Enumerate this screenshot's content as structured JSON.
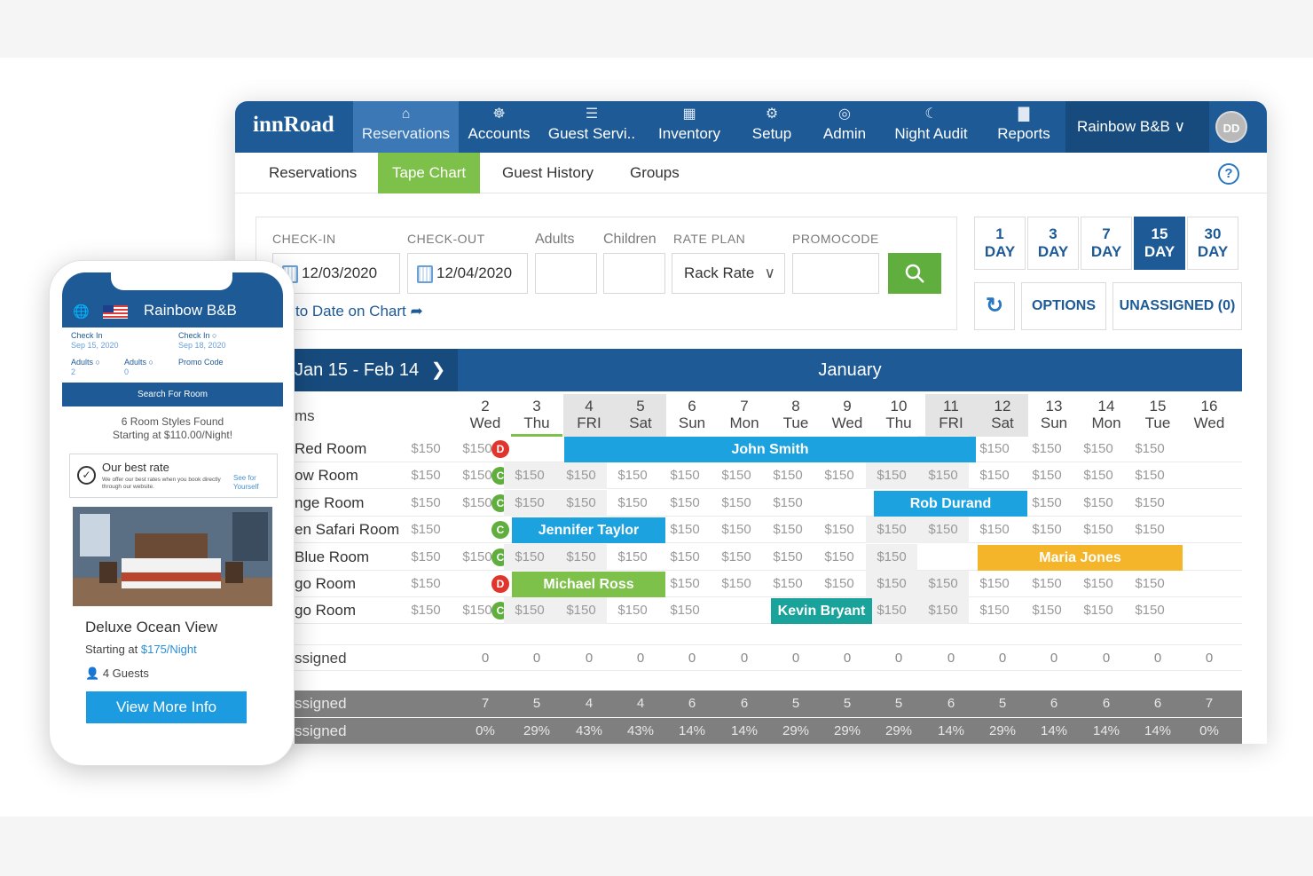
{
  "desktop": {
    "brand": "innRoad",
    "nav": [
      {
        "label": "Reservations",
        "icon": "bell-icon",
        "glyph": "⌂",
        "active": true
      },
      {
        "label": "Accounts",
        "icon": "people-icon",
        "glyph": "☸",
        "active": false
      },
      {
        "label": "Guest Servi..",
        "icon": "clipboard-icon",
        "glyph": "☰",
        "active": false
      },
      {
        "label": "Inventory",
        "icon": "calendar-icon",
        "glyph": "▦",
        "active": false
      },
      {
        "label": "Setup",
        "icon": "gear-icon",
        "glyph": "⚙",
        "active": false
      },
      {
        "label": "Admin",
        "icon": "lock-icon",
        "glyph": "◎",
        "active": false
      },
      {
        "label": "Night Audit",
        "icon": "moon-icon",
        "glyph": "☾",
        "active": false
      },
      {
        "label": "Reports",
        "icon": "bar-chart-icon",
        "glyph": "▇",
        "active": false
      }
    ],
    "property": "Rainbow B&B",
    "avatar": "DD",
    "subtabs": [
      "Reservations",
      "Tape Chart",
      "Guest History",
      "Groups"
    ],
    "active_subtab": "Tape Chart",
    "help": "?",
    "search": {
      "checkin_label": "CHECK-IN",
      "checkin": "12/03/2020",
      "checkout_label": "CHECK-OUT",
      "checkout": "12/04/2020",
      "adults_label": "Adults",
      "adults": "",
      "children_label": "Children",
      "children": "",
      "rateplan_label": "RATE PLAN",
      "rateplan": "Rack Rate",
      "promocode_label": "PROMOCODE",
      "promocode": "",
      "goto_link": "to Date on Chart"
    },
    "day_buttons": [
      {
        "n": "1",
        "label": "DAY",
        "active": false
      },
      {
        "n": "3",
        "label": "DAY",
        "active": false
      },
      {
        "n": "7",
        "label": "DAY",
        "active": false
      },
      {
        "n": "15",
        "label": "DAY",
        "active": true
      },
      {
        "n": "30",
        "label": "DAY",
        "active": false
      }
    ],
    "options_label": "OPTIONS",
    "unassigned_label": "UNASSIGNED (0)",
    "chart": {
      "range": "Jan 15 - Feb 14",
      "month": "January",
      "rooms_header": "ms",
      "days": [
        {
          "n": "2",
          "d": "Wed",
          "weekend": false
        },
        {
          "n": "3",
          "d": "Thu",
          "weekend": false,
          "selected": true
        },
        {
          "n": "4",
          "d": "FRI",
          "weekend": true
        },
        {
          "n": "5",
          "d": "Sat",
          "weekend": true
        },
        {
          "n": "6",
          "d": "Sun",
          "weekend": false
        },
        {
          "n": "7",
          "d": "Mon",
          "weekend": false
        },
        {
          "n": "8",
          "d": "Tue",
          "weekend": false
        },
        {
          "n": "9",
          "d": "Wed",
          "weekend": false
        },
        {
          "n": "10",
          "d": "Thu",
          "weekend": false
        },
        {
          "n": "11",
          "d": "FRI",
          "weekend": true
        },
        {
          "n": "12",
          "d": "Sat",
          "weekend": true
        },
        {
          "n": "13",
          "d": "Sun",
          "weekend": false
        },
        {
          "n": "14",
          "d": "Mon",
          "weekend": false
        },
        {
          "n": "15",
          "d": "Tue",
          "weekend": false
        },
        {
          "n": "16",
          "d": "Wed",
          "weekend": false
        }
      ],
      "price": "$150",
      "rooms": [
        {
          "name": "Red Room",
          "status": "D",
          "booking": {
            "guest": "John Smith",
            "start": 2,
            "end": 9,
            "color": "#1ca3df"
          }
        },
        {
          "name": "ow Room",
          "status": "C",
          "booking": null
        },
        {
          "name": "nge Room",
          "status": "C",
          "booking": {
            "guest": "Rob Durand",
            "start": 8,
            "end": 10,
            "color": "#1ca3df"
          }
        },
        {
          "name": "en Safari Room",
          "status": "C",
          "booking": {
            "guest": "Jennifer Taylor",
            "start": 1,
            "end": 3,
            "color": "#1ca3df"
          }
        },
        {
          "name": "Blue Room",
          "status": "C",
          "booking": {
            "guest": "Maria Jones",
            "start": 10,
            "end": 13,
            "color": "#f5b52a"
          }
        },
        {
          "name": "go Room",
          "status": "D",
          "booking": {
            "guest": "Michael Ross",
            "start": 1,
            "end": 3,
            "color": "#7dc04a"
          }
        },
        {
          "name": "go Room",
          "status": "C",
          "booking": {
            "guest": "Kevin Bryant",
            "start": 6,
            "end": 7,
            "color": "#1aa39a"
          }
        }
      ],
      "unassigned_label": "ssigned",
      "unassigned_values": [
        "0",
        "0",
        "0",
        "0",
        "0",
        "0",
        "0",
        "0",
        "0",
        "0",
        "0",
        "0",
        "0",
        "0",
        "0"
      ],
      "summary": [
        {
          "label": "ssigned",
          "values": [
            "7",
            "5",
            "4",
            "4",
            "6",
            "6",
            "5",
            "5",
            "5",
            "6",
            "5",
            "6",
            "6",
            "6",
            "7"
          ]
        },
        {
          "label": "ssigned",
          "values": [
            "0%",
            "29%",
            "43%",
            "43%",
            "14%",
            "14%",
            "29%",
            "29%",
            "29%",
            "14%",
            "29%",
            "14%",
            "14%",
            "14%",
            "0%"
          ]
        }
      ]
    }
  },
  "mobile": {
    "property": "Rainbow B&B",
    "checkin_label": "Check In",
    "checkin": "Sep 15, 2020",
    "checkout_label": "Check In",
    "checkout": "Sep 18, 2020",
    "adults_label": "Adults",
    "adults": "2",
    "adults2_label": "Adults",
    "adults2": "0",
    "promo_label": "Promo Code",
    "search_button": "Search For Room",
    "found_line1": "6 Room Styles Found",
    "found_line2": "Starting at $110.00/Night!",
    "best_title": "Our best rate",
    "best_sub": "We offer our best rates when you book directly through our website.",
    "best_link": "See for Yourself",
    "card_title": "Deluxe Ocean View",
    "card_price_prefix": "Starting at ",
    "card_price": "$175/Night",
    "guests": "4 Guests",
    "view_button": "View More Info"
  }
}
